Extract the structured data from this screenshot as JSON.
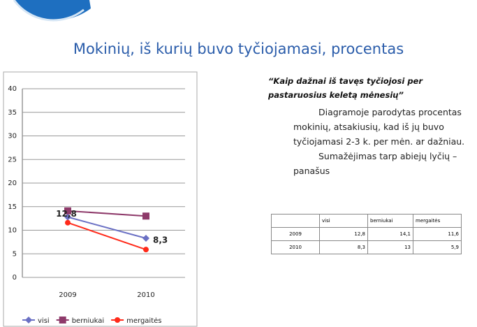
{
  "title": "Mokinių, iš kurių buvo tyčiojamasi, procentas",
  "chart_data": {
    "type": "line",
    "categories": [
      "2009",
      "2010"
    ],
    "series": [
      {
        "name": "visi",
        "color": "#6a70c4",
        "marker": "diamond",
        "values": [
          12.8,
          8.3
        ],
        "value_labels": [
          "12,8",
          "8,3"
        ]
      },
      {
        "name": "berniukai",
        "color": "#8e3a6a",
        "marker": "square",
        "values": [
          14.1,
          13
        ]
      },
      {
        "name": "mergaitės",
        "color": "#ff2a1a",
        "marker": "circle",
        "values": [
          11.6,
          5.9
        ]
      }
    ],
    "ylim": [
      0,
      40
    ],
    "yticks": [
      0,
      5,
      10,
      15,
      20,
      25,
      30,
      35,
      40
    ],
    "grid": true,
    "legend": "bottom"
  },
  "text": {
    "question": "“Kaip dažnai iš tavęs tyčiojosi per pastaruosius keletą mėnesių”",
    "paragraphs": [
      "Diagramoje parodytas procentas mokinių, atsakiusių, kad iš jų buvo tyčiojamasi 2-3 k. per mėn. ar dažniau.",
      "Sumažėjimas tarp abiejų lyčių – panašus"
    ]
  },
  "table": {
    "header": [
      "visi",
      "berniukai",
      "mergaitės"
    ],
    "rows": [
      [
        "2009",
        "12,8",
        "14,1",
        "11,6"
      ],
      [
        "2010",
        "8,3",
        "13",
        "5,9"
      ]
    ]
  }
}
